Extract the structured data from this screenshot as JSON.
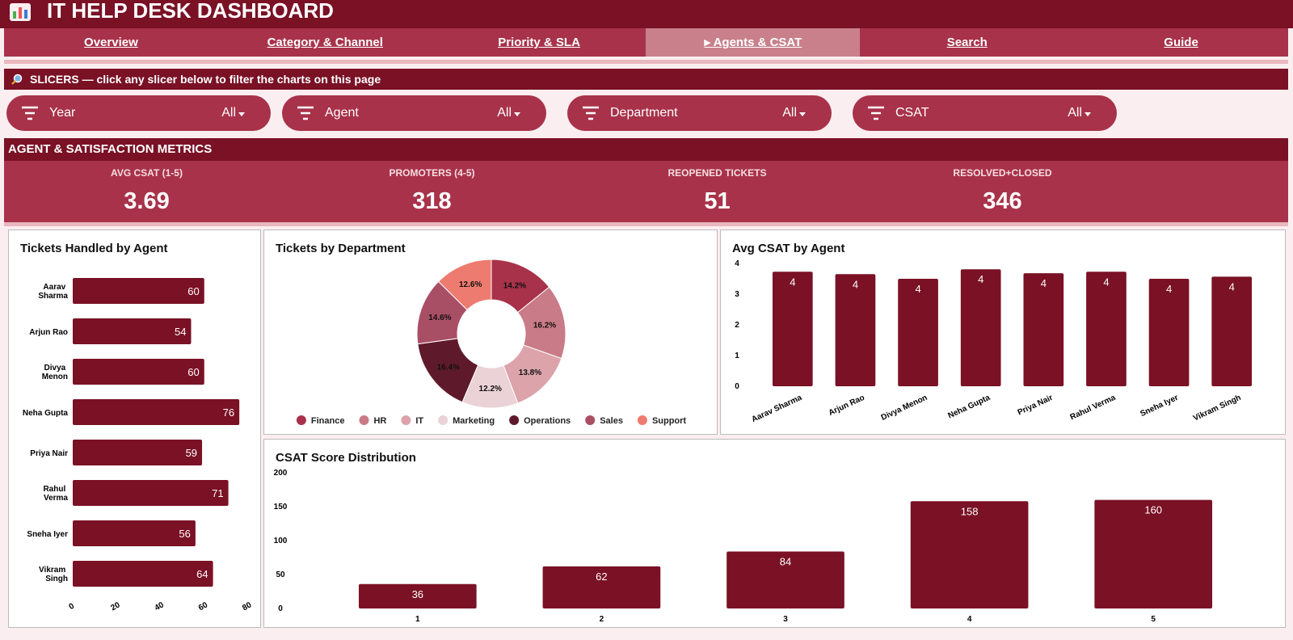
{
  "header": {
    "title": "IT HELP DESK DASHBOARD"
  },
  "nav": {
    "tabs": [
      "Overview",
      "Category & Channel",
      "Priority & SLA",
      "▸ Agents & CSAT",
      "Search",
      "Guide"
    ]
  },
  "slicers": {
    "banner": "SLICERS — click any slicer below to filter the charts on this page",
    "items": [
      {
        "label": "Year",
        "value": "All"
      },
      {
        "label": "Agent",
        "value": "All"
      },
      {
        "label": "Department",
        "value": "All"
      },
      {
        "label": "CSAT",
        "value": "All"
      }
    ]
  },
  "metrics": {
    "title": "AGENT & SATISFACTION METRICS",
    "kpis": [
      {
        "label": "AVG CSAT (1-5)",
        "value": 3.69
      },
      {
        "label": "PROMOTERS (4-5)",
        "value": 318
      },
      {
        "label": "REOPENED TICKETS",
        "value": 51
      },
      {
        "label": "RESOLVED+CLOSED",
        "value": 346
      }
    ]
  },
  "chart_data": [
    {
      "type": "bar",
      "orientation": "horizontal",
      "title": "Tickets Handled by Agent",
      "categories": [
        "Aarav Sharma",
        "Arjun Rao",
        "Divya Menon",
        "Neha Gupta",
        "Priya Nair",
        "Rahul Verma",
        "Sneha Iyer",
        "Vikram Singh"
      ],
      "values": [
        60,
        54,
        60,
        76,
        59,
        71,
        56,
        64
      ],
      "color": "#7a1125",
      "xlim": [
        0,
        80
      ],
      "xticks": [
        0,
        20,
        40,
        60,
        80
      ]
    },
    {
      "type": "donut",
      "title": "Tickets by Department",
      "categories": [
        "Finance",
        "HR",
        "IT",
        "Marketing",
        "Operations",
        "Sales",
        "Support"
      ],
      "values": [
        14.2,
        16.2,
        13.8,
        12.2,
        16.4,
        14.6,
        12.6
      ],
      "value_labels": [
        "14.2%",
        "16.2%",
        "13.8%",
        "12.2%",
        "16.4%",
        "14.6%",
        "12.6%"
      ],
      "colors": [
        "#a8324a",
        "#c97b87",
        "#dca3aa",
        "#ead2d6",
        "#5e1a2b",
        "#a94f65",
        "#ee7b6f"
      ]
    },
    {
      "type": "bar",
      "orientation": "vertical",
      "title": "Avg CSAT by Agent",
      "categories": [
        "Aarav Sharma",
        "Arjun Rao",
        "Divya Menon",
        "Neha Gupta",
        "Priya Nair",
        "Rahul Verma",
        "Sneha Iyer",
        "Vikram Singh"
      ],
      "values": [
        3.73,
        3.65,
        3.5,
        3.81,
        3.68,
        3.73,
        3.5,
        3.57
      ],
      "value_labels": [
        "4",
        "4",
        "4",
        "4",
        "4",
        "4",
        "4",
        "4"
      ],
      "color": "#7a1125",
      "ylim": [
        0,
        4
      ],
      "yticks": [
        0,
        1,
        2,
        3,
        4
      ]
    },
    {
      "type": "bar",
      "orientation": "vertical",
      "title": "CSAT Score Distribution",
      "categories": [
        "1",
        "2",
        "3",
        "4",
        "5"
      ],
      "values": [
        36,
        62,
        84,
        158,
        160
      ],
      "color": "#7a1125",
      "ylim": [
        0,
        200
      ],
      "yticks": [
        0,
        50,
        100,
        150,
        200
      ]
    }
  ]
}
